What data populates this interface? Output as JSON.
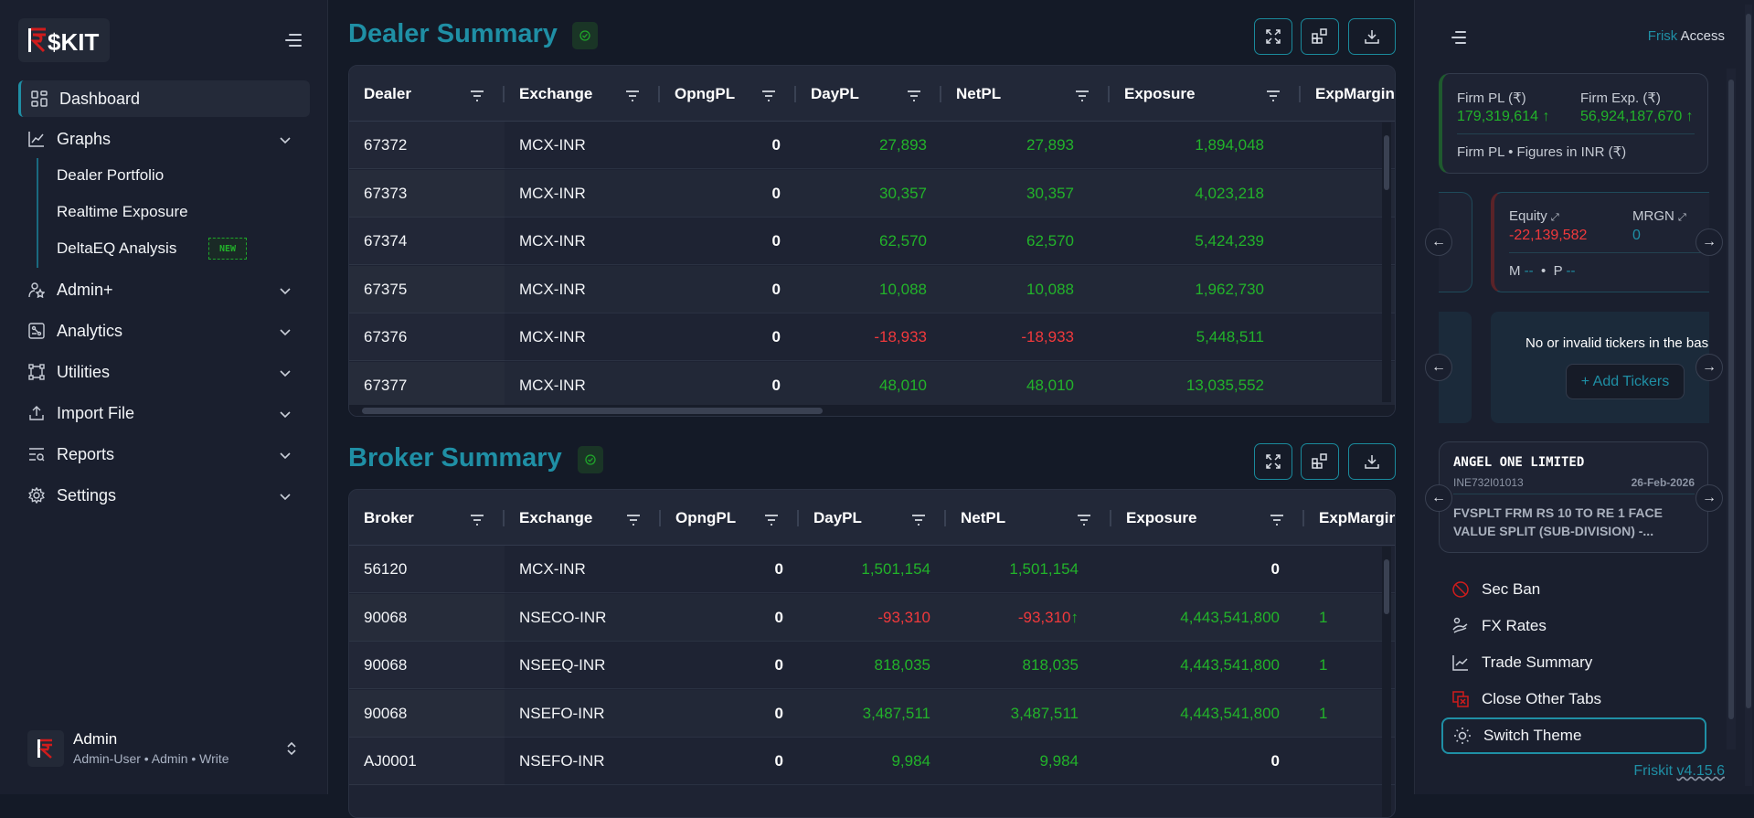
{
  "sidebar": {
    "logo_text": "₹$KIT",
    "items": [
      {
        "label": "Dashboard",
        "icon": "dashboard-icon",
        "active": true
      },
      {
        "label": "Graphs",
        "icon": "chart-line-icon",
        "expanded": true,
        "children": [
          {
            "label": "Dealer Portfolio"
          },
          {
            "label": "Realtime Exposure"
          },
          {
            "label": "DeltaEQ Analysis",
            "badge": "NEW"
          }
        ]
      },
      {
        "label": "Admin+",
        "icon": "user-star-icon"
      },
      {
        "label": "Analytics",
        "icon": "analytics-icon"
      },
      {
        "label": "Utilities",
        "icon": "utilities-icon"
      },
      {
        "label": "Import File",
        "icon": "upload-icon"
      },
      {
        "label": "Reports",
        "icon": "report-search-icon"
      },
      {
        "label": "Settings",
        "icon": "gear-icon"
      }
    ],
    "user": {
      "name": "Admin",
      "details": "Admin-User • Admin • Write"
    }
  },
  "dealer_summary": {
    "title": "Dealer Summary",
    "columns": [
      "Dealer",
      "Exchange",
      "OpngPL",
      "DayPL",
      "NetPL",
      "Exposure",
      "ExpMargin"
    ],
    "rows": [
      [
        "67372",
        "MCX-INR",
        "0",
        "27,893",
        "27,893",
        "1,894,048",
        ""
      ],
      [
        "67373",
        "MCX-INR",
        "0",
        "30,357",
        "30,357",
        "4,023,218",
        ""
      ],
      [
        "67374",
        "MCX-INR",
        "0",
        "62,570",
        "62,570",
        "5,424,239",
        ""
      ],
      [
        "67375",
        "MCX-INR",
        "0",
        "10,088",
        "10,088",
        "1,962,730",
        ""
      ],
      [
        "67376",
        "MCX-INR",
        "0",
        "-18,933",
        "-18,933",
        "5,448,511",
        ""
      ],
      [
        "67377",
        "MCX-INR",
        "0",
        "48,010",
        "48,010",
        "13,035,552",
        ""
      ]
    ]
  },
  "broker_summary": {
    "title": "Broker Summary",
    "columns": [
      "Broker",
      "Exchange",
      "OpngPL",
      "DayPL",
      "NetPL",
      "Exposure",
      "ExpMargin"
    ],
    "rows": [
      [
        "56120",
        "MCX-INR",
        "0",
        "1,501,154",
        "1,501,154",
        "0",
        ""
      ],
      [
        "90068",
        "NSECO-INR",
        "0",
        "-93,310",
        "-93,310 ↑",
        "4,443,541,800",
        "1"
      ],
      [
        "90068",
        "NSEEQ-INR",
        "0",
        "818,035",
        "818,035",
        "4,443,541,800",
        "1"
      ],
      [
        "90068",
        "NSEFO-INR",
        "0",
        "3,487,511",
        "3,487,511",
        "4,443,541,800",
        "1"
      ],
      [
        "AJ0001",
        "NSEFO-INR",
        "0",
        "9,984",
        "9,984",
        "0",
        ""
      ]
    ]
  },
  "right_panel": {
    "header": {
      "brand": "Frisk",
      "title": "Access"
    },
    "firm_card": {
      "pl_label": "Firm PL (₹)",
      "pl_value": "179,319,614",
      "pl_trend": "↑",
      "exp_label": "Firm Exp. (₹)",
      "exp_value": "56,924,187,670",
      "exp_trend": "↑",
      "footer_left": "Firm PL",
      "footer_right": "Figures in INR (₹)"
    },
    "equity_card": {
      "equity_label": "Equity",
      "equity_value": "-22,139,582",
      "mrgn_label": "MRGN",
      "mrgn_value": "0",
      "m_label": "M",
      "m_value": "--",
      "p_label": "P",
      "p_value": "--"
    },
    "ticker_card": {
      "message": "No or invalid tickers in the basket",
      "button": "+ Add Tickers"
    },
    "corp_action": {
      "company": "ANGEL ONE LIMITED",
      "isin": "INE732I01013",
      "date": "26-Feb-2026",
      "description": "FVSPLT FRM RS 10 TO RE 1 FACE VALUE SPLIT (SUB-DIVISION) -..."
    },
    "menu": [
      {
        "label": "Sec Ban",
        "icon": "ban-icon"
      },
      {
        "label": "FX Rates",
        "icon": "fx-rates-icon"
      },
      {
        "label": "Trade Summary",
        "icon": "chart-line-icon"
      },
      {
        "label": "Close Other Tabs",
        "icon": "close-tabs-icon"
      },
      {
        "label": "Switch Theme",
        "icon": "sun-icon",
        "focused": true
      }
    ],
    "version": {
      "brand": "Friskit",
      "number": "v4.15.6"
    }
  },
  "colors": {
    "accent": "#1f8fa5",
    "positive": "#22b32a",
    "negative": "#f0393c",
    "background": "#141a27"
  }
}
